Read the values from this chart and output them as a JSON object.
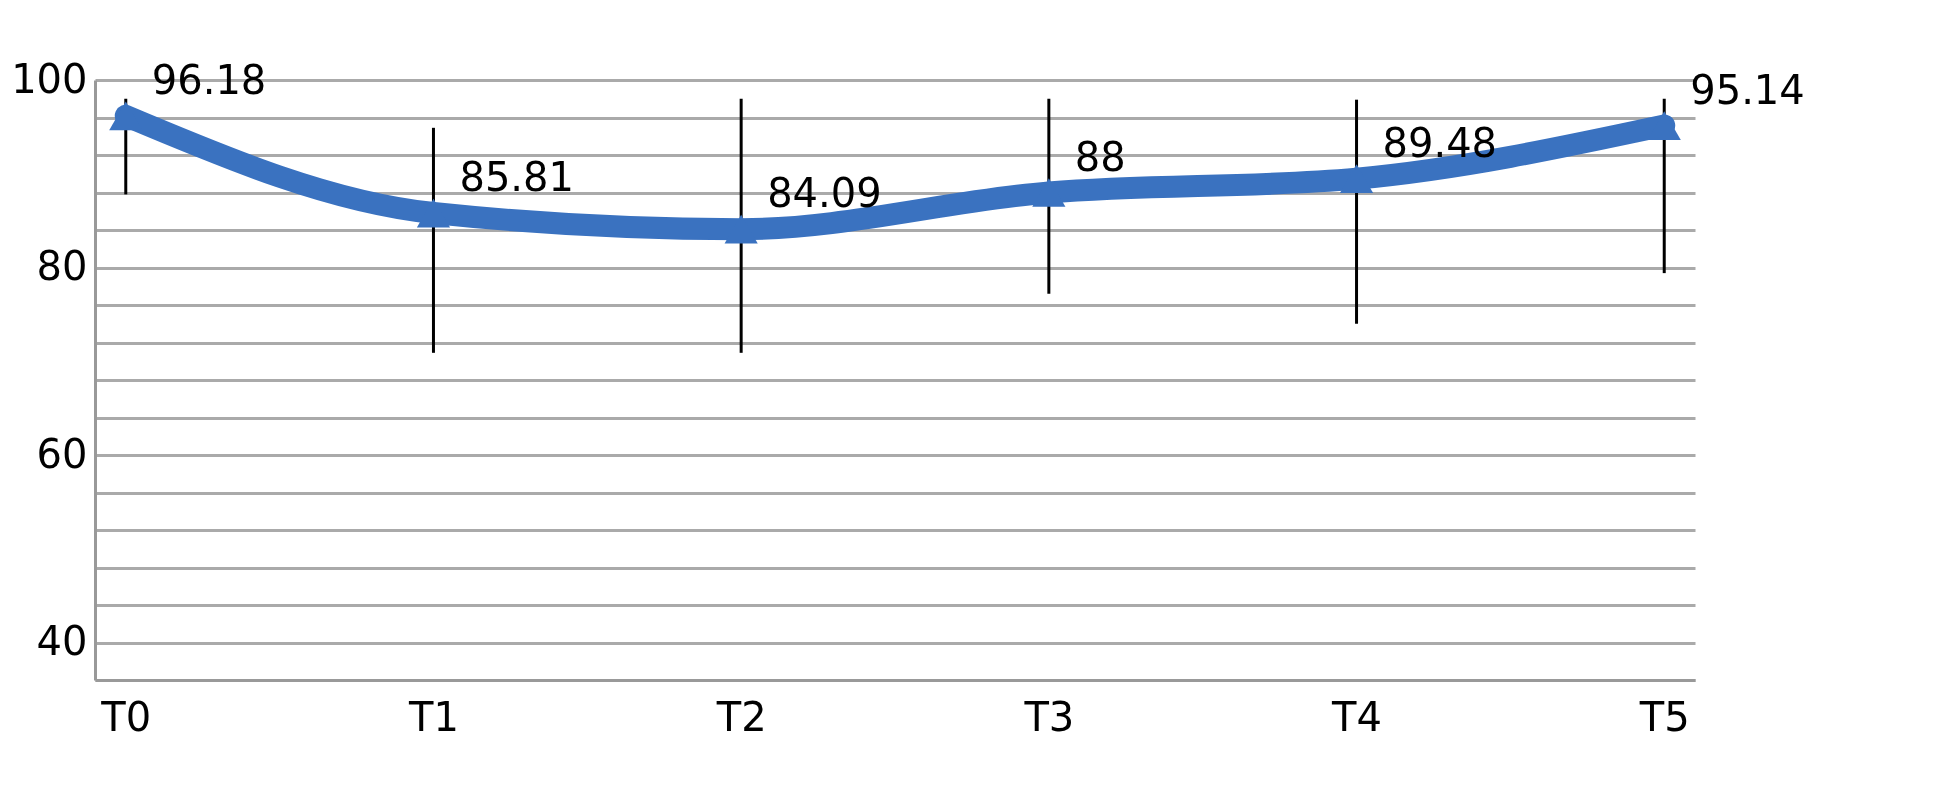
{
  "chart_data": {
    "type": "line",
    "categories": [
      "T0",
      "T1",
      "T2",
      "T3",
      "T4",
      "T5"
    ],
    "ylim": [
      36,
      100
    ],
    "yticks": [
      {
        "value": 36,
        "label": null
      },
      40,
      {
        "value": 44,
        "label": null
      },
      {
        "value": 48,
        "label": null
      },
      {
        "value": 52,
        "label": null
      },
      {
        "value": 56,
        "label": null
      },
      60,
      {
        "value": 64,
        "label": null
      },
      {
        "value": 68,
        "label": null
      },
      {
        "value": 72,
        "label": null
      },
      {
        "value": 76,
        "label": null
      },
      80,
      {
        "value": 84,
        "label": null
      },
      {
        "value": 88,
        "label": null
      },
      {
        "value": 92,
        "label": null
      },
      {
        "value": 96,
        "label": null
      },
      100
    ],
    "series": [
      {
        "color": "#3a72c0",
        "values": [
          96.18,
          85.81,
          84.09,
          88,
          89.48,
          95.14
        ],
        "errors": [
          [
            87.8,
            98
          ],
          [
            70.9,
            94.9
          ],
          [
            70.9,
            98
          ],
          [
            77.2,
            98
          ],
          [
            74,
            97.9
          ],
          [
            79.4,
            98
          ]
        ]
      }
    ],
    "marker": "triangle",
    "data_labels": true,
    "grid": "y"
  }
}
